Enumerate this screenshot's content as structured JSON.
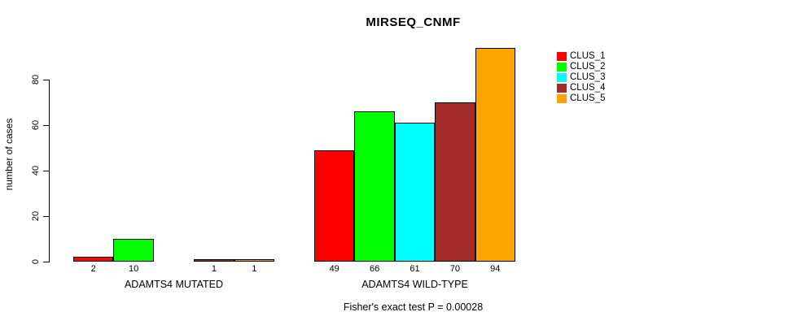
{
  "chart_data": {
    "type": "bar",
    "title": "MIRSEQ_CNMF",
    "ylabel": "number of cases",
    "xlabel": "",
    "yticks": [
      0,
      20,
      40,
      60,
      80
    ],
    "ylim": [
      0,
      94
    ],
    "grid": false,
    "legend_position": "right",
    "categories": [
      "ADAMTS4 MUTATED",
      "ADAMTS4 WILD-TYPE"
    ],
    "series": [
      {
        "name": "CLUS_1",
        "color": "#ff0000",
        "values": [
          2,
          49
        ]
      },
      {
        "name": "CLUS_2",
        "color": "#00ff00",
        "values": [
          10,
          66
        ]
      },
      {
        "name": "CLUS_3",
        "color": "#00ffff",
        "values": [
          0,
          61
        ]
      },
      {
        "name": "CLUS_4",
        "color": "#a52a2a",
        "values": [
          1,
          70
        ]
      },
      {
        "name": "CLUS_5",
        "color": "#ffa500",
        "values": [
          1,
          94
        ]
      }
    ],
    "bar_value_labels": [
      [
        "2",
        "10",
        "",
        "1",
        "1"
      ],
      [
        "49",
        "66",
        "61",
        "70",
        "94"
      ]
    ],
    "annotation": "Fisher's exact test P = 0.00028"
  }
}
